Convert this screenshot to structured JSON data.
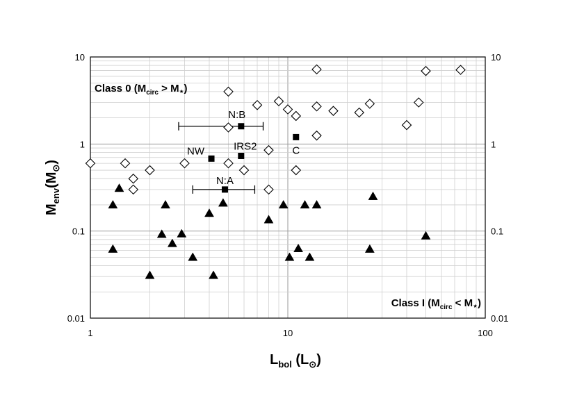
{
  "chart_data": {
    "type": "scatter",
    "xscale": "log",
    "yscale": "log",
    "xlim": [
      1,
      100
    ],
    "ylim": [
      0.01,
      10
    ],
    "grid": true,
    "x_ticks": [
      "1",
      "10",
      "100"
    ],
    "y_ticks": [
      "0.01",
      "0.1",
      "1",
      "10"
    ],
    "y_ticks_right": [
      "0.01",
      "0.1",
      "1",
      "10"
    ],
    "xlabel": {
      "main": "L",
      "sub": "bol",
      "rest": " (L",
      "sym": "⊙",
      "close": ")"
    },
    "ylabel": {
      "main": "M",
      "sub": "env",
      "rest": "(M",
      "sym": "⊙",
      "close": ")"
    },
    "annotations": [
      {
        "text": "Class 0 (",
        "sub": "M",
        "subsub": "circ",
        "rest": " > M",
        "star": "⋆",
        "close": ")",
        "pos": "top-left"
      },
      {
        "text": "Class I (",
        "sub": "M",
        "subsub": "circ",
        "rest": " < M",
        "star": "⋆",
        "close": ")",
        "pos": "bottom-right"
      }
    ],
    "series": [
      {
        "marker": "diamond-open",
        "points": [
          [
            1.0,
            0.6
          ],
          [
            1.5,
            0.6
          ],
          [
            1.65,
            0.4
          ],
          [
            1.65,
            0.3
          ],
          [
            2.0,
            0.5
          ],
          [
            3.0,
            0.6
          ],
          [
            5.0,
            4.0
          ],
          [
            5.0,
            1.55
          ],
          [
            5.0,
            0.6
          ],
          [
            6.0,
            0.5
          ],
          [
            7.0,
            2.8
          ],
          [
            8.0,
            0.85
          ],
          [
            8.0,
            0.3
          ],
          [
            9.0,
            3.1
          ],
          [
            10.0,
            2.5
          ],
          [
            11.0,
            2.1
          ],
          [
            11.0,
            0.5
          ],
          [
            14.0,
            7.2
          ],
          [
            14.0,
            2.7
          ],
          [
            14.0,
            1.25
          ],
          [
            17.0,
            2.4
          ],
          [
            23.0,
            2.3
          ],
          [
            26.0,
            2.9
          ],
          [
            40.0,
            1.65
          ],
          [
            46.0,
            3.0
          ],
          [
            50.0,
            6.9
          ],
          [
            75.0,
            7.1
          ]
        ]
      },
      {
        "marker": "triangle-filled",
        "points": [
          [
            1.3,
            0.062
          ],
          [
            1.3,
            0.2
          ],
          [
            1.4,
            0.31
          ],
          [
            2.0,
            0.031
          ],
          [
            2.3,
            0.092
          ],
          [
            2.4,
            0.2
          ],
          [
            2.6,
            0.072
          ],
          [
            2.9,
            0.093
          ],
          [
            3.3,
            0.05
          ],
          [
            4.0,
            0.16
          ],
          [
            4.2,
            0.031
          ],
          [
            4.7,
            0.21
          ],
          [
            8.0,
            0.135
          ],
          [
            9.5,
            0.2
          ],
          [
            10.2,
            0.05
          ],
          [
            11.3,
            0.063
          ],
          [
            12.2,
            0.2
          ],
          [
            12.9,
            0.05
          ],
          [
            14.0,
            0.2
          ],
          [
            26.0,
            0.062
          ],
          [
            27.0,
            0.25
          ],
          [
            50.0,
            0.088
          ]
        ]
      },
      {
        "marker": "square-filled",
        "points": [
          {
            "x": 5.8,
            "y": 1.6,
            "label": "N:B",
            "xerr": [
              2.8,
              7.5
            ]
          },
          {
            "x": 4.8,
            "y": 0.3,
            "label": "N:A",
            "xerr": [
              3.3,
              6.8
            ]
          },
          {
            "x": 4.1,
            "y": 0.68,
            "label": "NW"
          },
          {
            "x": 5.8,
            "y": 0.73,
            "label": "IRS2"
          },
          {
            "x": 11.0,
            "y": 1.2,
            "label": "C"
          }
        ]
      }
    ]
  }
}
